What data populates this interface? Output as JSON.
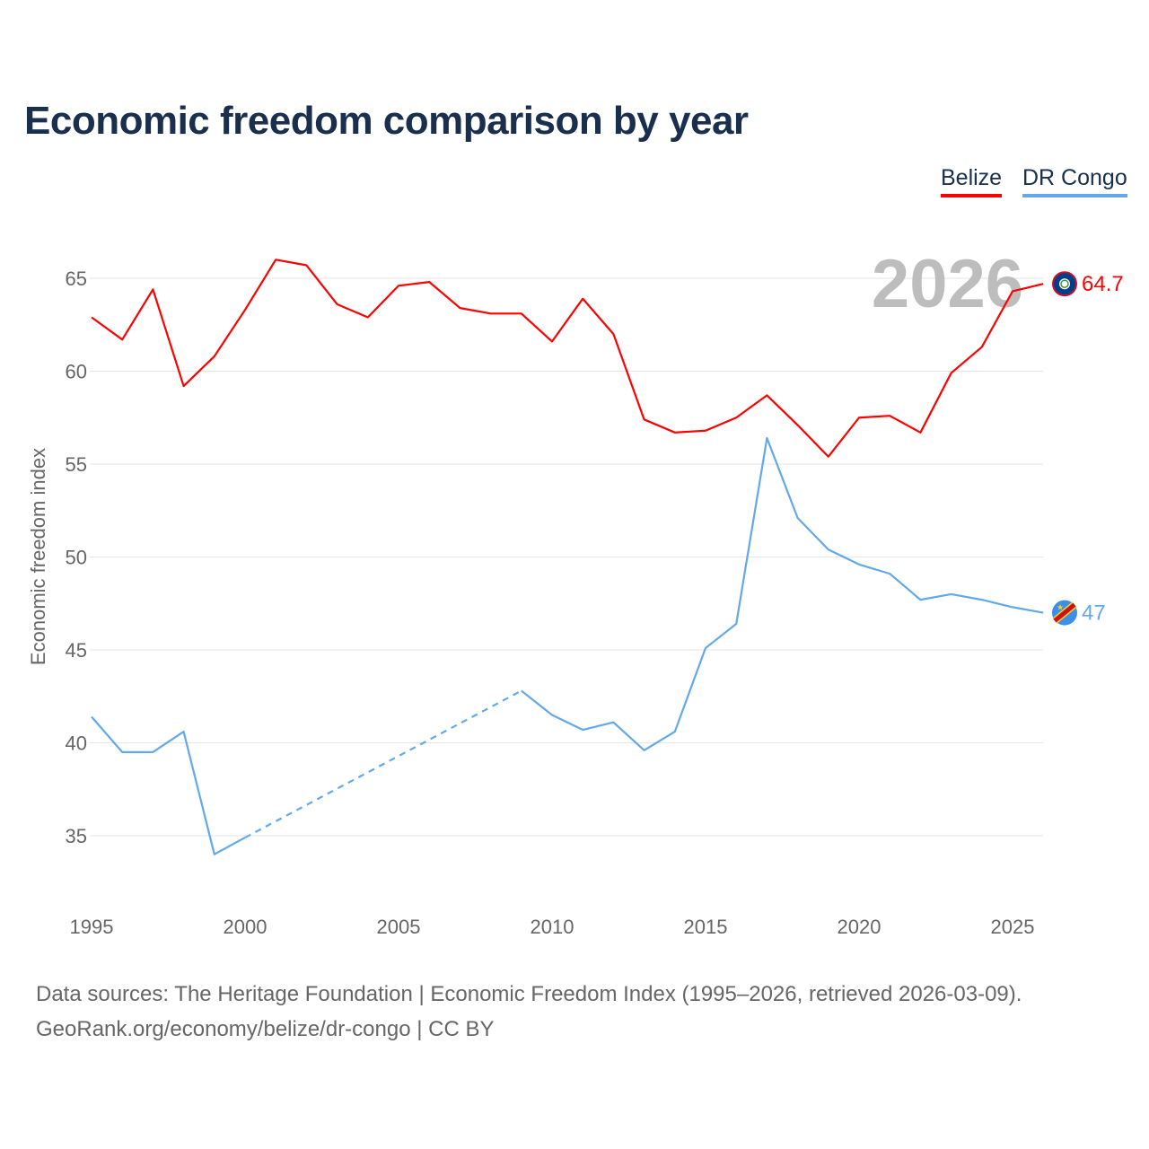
{
  "chart_data": {
    "type": "line",
    "title": "Economic freedom comparison by year",
    "xlabel": "",
    "ylabel": "Economic freedom index",
    "xlim": [
      1995,
      2026
    ],
    "ylim": [
      32,
      67
    ],
    "x_ticks": [
      1995,
      2000,
      2005,
      2010,
      2015,
      2020,
      2025
    ],
    "y_ticks": [
      35,
      40,
      45,
      50,
      55,
      60,
      65
    ],
    "grid": true,
    "legend_placement": "top-right",
    "year_watermark": "2026",
    "x": [
      1995,
      1996,
      1997,
      1998,
      1999,
      2000,
      2001,
      2002,
      2003,
      2004,
      2005,
      2006,
      2007,
      2008,
      2009,
      2010,
      2011,
      2012,
      2013,
      2014,
      2015,
      2016,
      2017,
      2018,
      2019,
      2020,
      2021,
      2022,
      2023,
      2024,
      2025,
      2026
    ],
    "series": [
      {
        "name": "Belize",
        "color": "#ff0000",
        "end_label": "64.7",
        "values": [
          62.9,
          61.7,
          64.4,
          59.2,
          60.8,
          63.3,
          66.0,
          65.7,
          63.6,
          62.9,
          64.6,
          64.8,
          63.4,
          63.1,
          63.1,
          61.6,
          63.9,
          62.0,
          57.4,
          56.7,
          56.8,
          57.5,
          58.7,
          57.1,
          55.4,
          57.5,
          57.6,
          56.7,
          59.9,
          61.3,
          64.3,
          64.7
        ]
      },
      {
        "name": "DR Congo",
        "color": "#62a8eb",
        "end_label": "47",
        "values": [
          41.4,
          39.5,
          39.5,
          40.6,
          34.0,
          34.9,
          null,
          null,
          null,
          null,
          null,
          null,
          null,
          null,
          42.8,
          41.5,
          40.7,
          41.1,
          39.6,
          40.6,
          45.1,
          46.4,
          56.4,
          52.1,
          50.4,
          49.6,
          49.1,
          47.7,
          48.0,
          47.7,
          47.3,
          47.0
        ]
      }
    ]
  },
  "legend": {
    "belize": "Belize",
    "congo": "DR Congo"
  },
  "source": {
    "line1": "Data sources: The Heritage Foundation | Economic Freedom Index (1995–2026, retrieved 2026-03-09).",
    "line2": "GeoRank.org/economy/belize/dr-congo | CC BY"
  }
}
